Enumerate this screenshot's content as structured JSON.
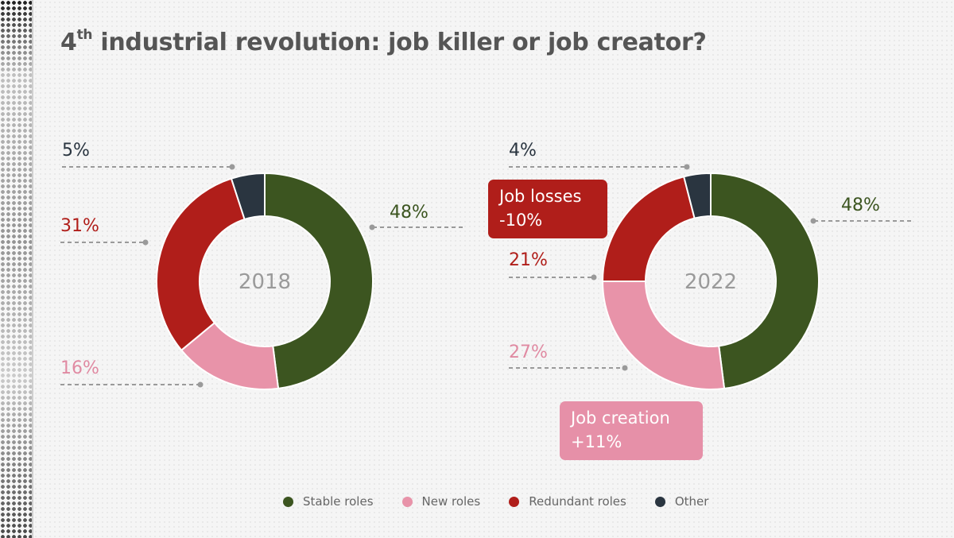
{
  "title": {
    "pre": "4",
    "sup": "th",
    "rest": " industrial revolution: job killer or job creator?"
  },
  "colors": {
    "stable": "#3c5520",
    "new": "#e893a9",
    "redundant": "#b01e1a",
    "other": "#2a3540"
  },
  "chart_data": [
    {
      "type": "pie",
      "title": "2018",
      "categories": [
        "Stable roles",
        "New roles",
        "Redundant roles",
        "Other"
      ],
      "values": [
        48,
        16,
        31,
        5
      ],
      "value_labels": [
        "48%",
        "16%",
        "31%",
        "5%"
      ]
    },
    {
      "type": "pie",
      "title": "2022",
      "categories": [
        "Stable roles",
        "New roles",
        "Redundant roles",
        "Other"
      ],
      "values": [
        48,
        27,
        21,
        4
      ],
      "value_labels": [
        "48%",
        "27%",
        "21%",
        "4%"
      ]
    }
  ],
  "callouts": {
    "losses": {
      "line1": "Job losses",
      "line2": "-10%"
    },
    "creation": {
      "line1": "Job creation",
      "line2": "+11%"
    }
  },
  "legend": [
    {
      "label": "Stable roles",
      "color": "#3c5520"
    },
    {
      "label": "New roles",
      "color": "#e893a9"
    },
    {
      "label": "Redundant roles",
      "color": "#b01e1a"
    },
    {
      "label": "Other",
      "color": "#2a3540"
    }
  ]
}
